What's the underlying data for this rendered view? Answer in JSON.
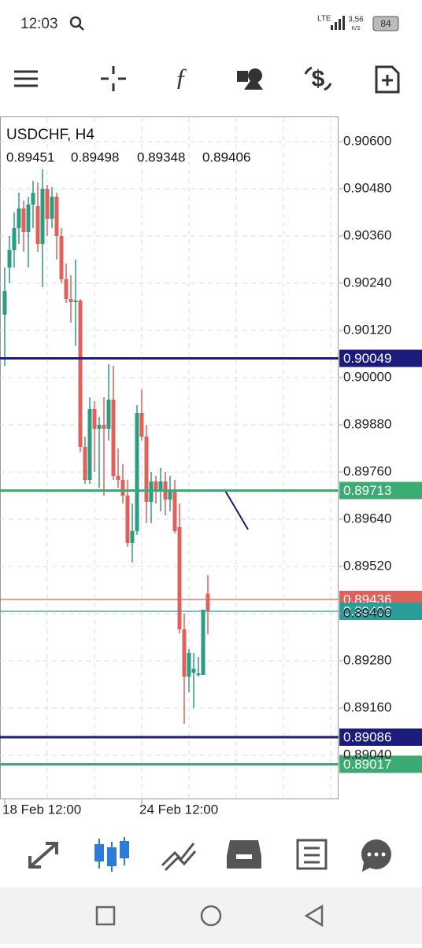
{
  "status_bar": {
    "time": "12:03",
    "network": "LTE",
    "speed": "3,56",
    "speed_unit": "K/S",
    "battery": "84"
  },
  "chart_data": {
    "type": "candlestick",
    "title": "USDCHF, H4",
    "categories": [
      "18 Feb 12:00",
      null,
      null,
      null,
      null,
      null,
      null,
      null,
      null,
      null,
      null,
      null,
      null,
      null,
      null,
      null,
      null,
      null,
      null,
      null,
      null,
      null,
      null,
      null,
      null,
      null,
      null,
      null,
      null,
      "24 Feb 12:00",
      null,
      null,
      null,
      null,
      null,
      null,
      null,
      null,
      null,
      null,
      null,
      null,
      null,
      null
    ],
    "open": [
      0.9016,
      0.9028,
      0.90324,
      0.9038,
      0.9043,
      0.9037,
      0.9044,
      0.90436,
      0.9034,
      0.9048,
      0.90404,
      0.9046,
      0.9036,
      0.9025,
      0.902,
      0.90192,
      0.90196,
      0.89824,
      0.8974,
      0.8992,
      0.8987,
      0.8988,
      0.8987,
      0.89944,
      0.8975,
      0.8974,
      0.897,
      0.8958,
      0.8961,
      0.8991,
      0.8985,
      0.89684,
      0.89736,
      0.8971,
      0.89736,
      0.8969,
      0.8971,
      0.8962,
      0.8936,
      0.8924,
      0.8925,
      0.89244,
      0.89244,
      0.89451
    ],
    "high": [
      0.9028,
      0.9036,
      0.9042,
      0.9047,
      0.9045,
      0.9046,
      0.905,
      0.90496,
      0.9053,
      0.9049,
      0.90484,
      0.9047,
      0.9038,
      0.9029,
      0.9026,
      0.903,
      0.902,
      0.8985,
      0.8995,
      0.8994,
      0.899,
      0.8995,
      0.90034,
      0.9003,
      0.8982,
      0.8978,
      0.8974,
      0.8968,
      0.8993,
      0.8997,
      0.8988,
      0.8976,
      0.8975,
      0.8977,
      0.8976,
      0.8975,
      0.8974,
      0.8968,
      0.894,
      0.8931,
      0.893,
      0.8929,
      0.8941,
      0.89498
    ],
    "low": [
      0.9003,
      0.9024,
      0.9028,
      0.9034,
      0.9032,
      0.9028,
      0.9038,
      0.9032,
      0.9023,
      0.9036,
      0.9038,
      0.903,
      0.9024,
      0.9019,
      0.9014,
      0.9008,
      0.8981,
      0.8973,
      0.8973,
      0.8976,
      0.8972,
      0.897,
      0.8984,
      0.8974,
      0.8972,
      0.8968,
      0.8957,
      0.8953,
      0.896,
      0.8984,
      0.8963,
      0.8963,
      0.8968,
      0.8966,
      0.8965,
      0.8966,
      0.89604,
      0.8935,
      0.8912,
      0.892,
      0.8916,
      0.8924,
      0.89244,
      0.89348
    ],
    "close": [
      0.9022,
      0.90324,
      0.9038,
      0.9043,
      0.9037,
      0.9044,
      0.9047,
      0.9034,
      0.9048,
      0.90404,
      0.9046,
      0.9036,
      0.9025,
      0.902,
      0.90192,
      0.90196,
      0.89824,
      0.8974,
      0.8992,
      0.8987,
      0.8988,
      0.8987,
      0.89944,
      0.8975,
      0.8974,
      0.897,
      0.8958,
      0.8961,
      0.8991,
      0.8985,
      0.89684,
      0.89736,
      0.8971,
      0.89736,
      0.8969,
      0.8971,
      0.8961,
      0.8936,
      0.8924,
      0.893,
      0.8926,
      0.89248,
      0.8941,
      0.89406
    ],
    "up_color": "#2a9d82",
    "down_color": "#e0605a",
    "ylim": [
      0.8893,
      0.9066
    ],
    "yticks": [
      {
        "value": 0.906,
        "label": "0.90600"
      },
      {
        "value": 0.9048,
        "label": "0.90480"
      },
      {
        "value": 0.9036,
        "label": "0.90360"
      },
      {
        "value": 0.9024,
        "label": "0.90240"
      },
      {
        "value": 0.9012,
        "label": "0.90120"
      },
      {
        "value": 0.9,
        "label": "0.90000"
      },
      {
        "value": 0.8988,
        "label": "0.89880"
      },
      {
        "value": 0.8976,
        "label": "0.89760"
      },
      {
        "value": 0.8964,
        "label": "0.89640"
      },
      {
        "value": 0.8952,
        "label": "0.89520"
      },
      {
        "value": 0.894,
        "label": "0.89400"
      },
      {
        "value": 0.8928,
        "label": "0.89280"
      },
      {
        "value": 0.8916,
        "label": "0.89160"
      },
      {
        "value": 0.8904,
        "label": "0.89040"
      }
    ],
    "grid": true,
    "levels": [
      {
        "value": 0.90049,
        "color": "#1c1c7c"
      },
      {
        "value": 0.89713,
        "color": "#3cab73"
      },
      {
        "value": 0.89436,
        "color": "#e0605a"
      },
      {
        "value": 0.89406,
        "color": "#2a9d9a"
      },
      {
        "value": 0.89086,
        "color": "#1c1c7c"
      },
      {
        "value": 0.89017,
        "color": "#3cab73"
      }
    ]
  }
}
